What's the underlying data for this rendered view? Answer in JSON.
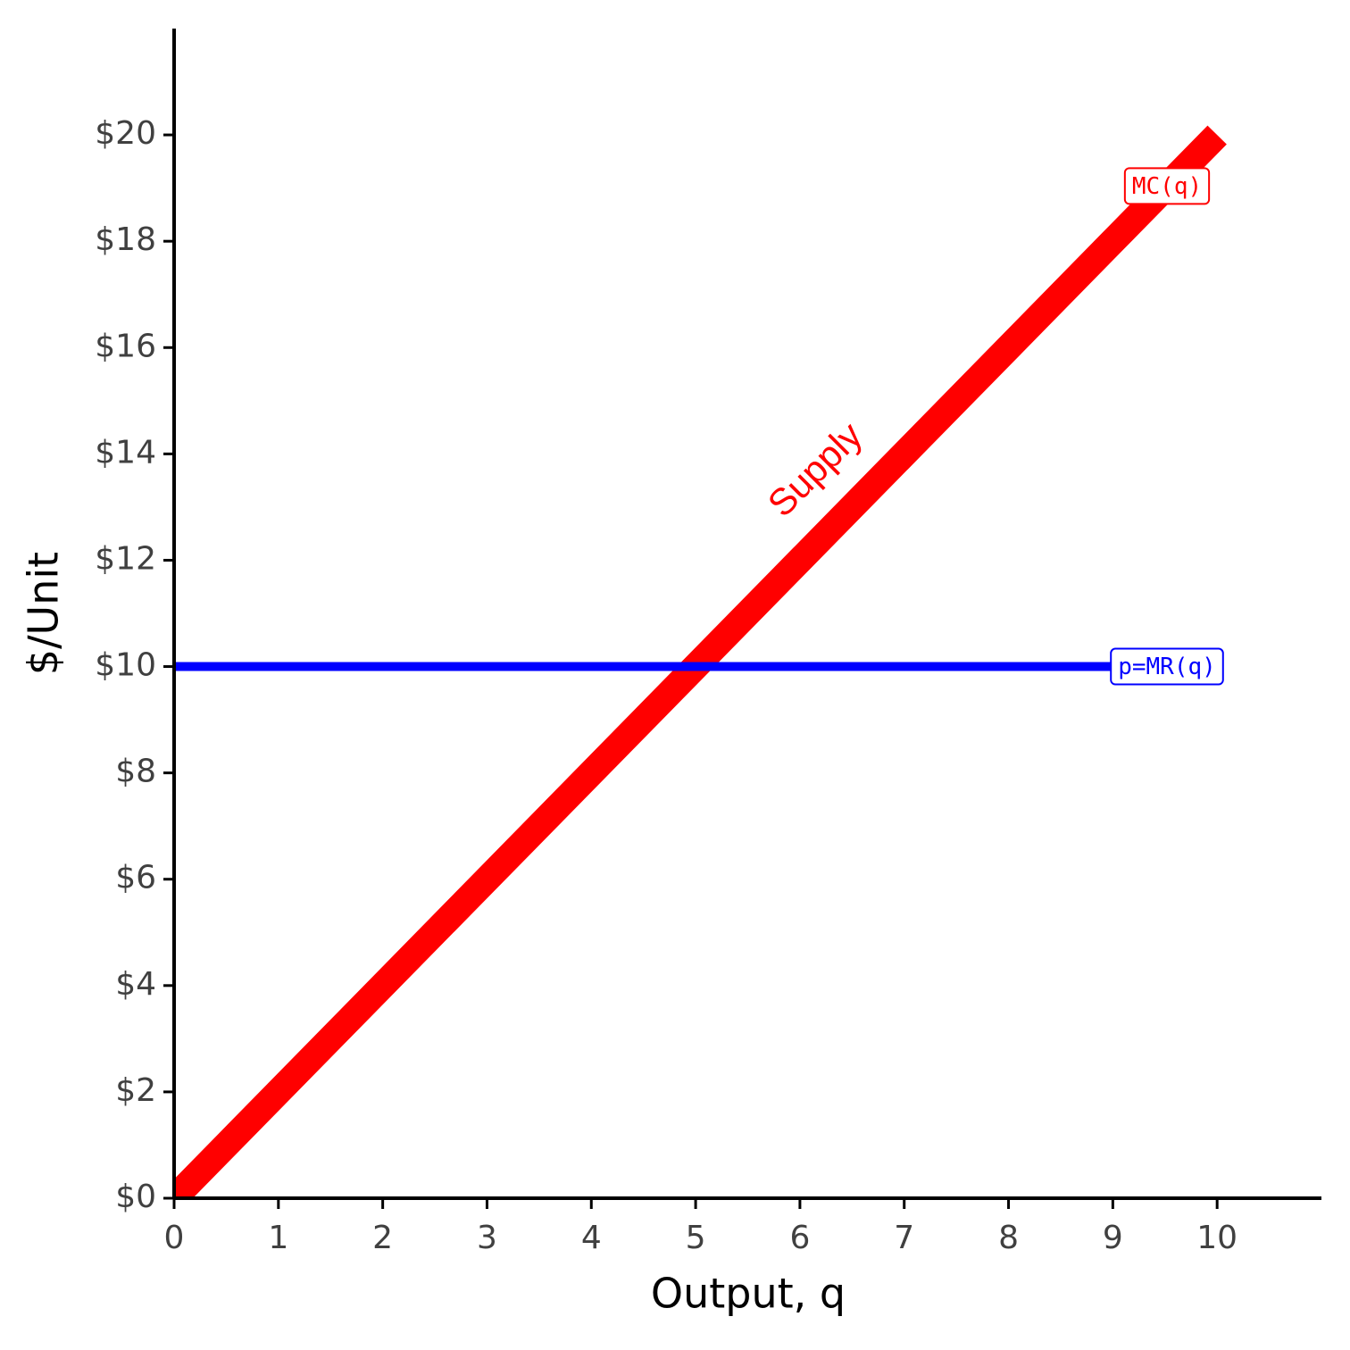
{
  "chart_data": {
    "type": "line",
    "x_label": "Output, q",
    "y_label": "$/Unit",
    "x": [
      0,
      9,
      10
    ],
    "series": [
      {
        "name": "MC(q)",
        "color": "#ff0000",
        "values": [
          0,
          18,
          20
        ]
      },
      {
        "name": "p=MR(q)",
        "color": "#0000ff",
        "values": [
          10,
          10,
          null
        ]
      }
    ],
    "annotations": [
      {
        "text": "Supply",
        "color": "#ff0000"
      }
    ],
    "xlim": [
      0,
      11
    ],
    "ylim": [
      0,
      22
    ],
    "xticks": [
      0,
      1,
      2,
      3,
      4,
      5,
      6,
      7,
      8,
      9,
      10
    ],
    "yticks": [
      {
        "value": 0,
        "label": "$0"
      },
      {
        "value": 2,
        "label": "$2"
      },
      {
        "value": 4,
        "label": "$4"
      },
      {
        "value": 6,
        "label": "$6"
      },
      {
        "value": 8,
        "label": "$8"
      },
      {
        "value": 10,
        "label": "$10"
      },
      {
        "value": 12,
        "label": "$12"
      },
      {
        "value": 14,
        "label": "$14"
      },
      {
        "value": 16,
        "label": "$16"
      },
      {
        "value": 18,
        "label": "$18"
      },
      {
        "value": 20,
        "label": "$20"
      }
    ],
    "grid": false
  }
}
